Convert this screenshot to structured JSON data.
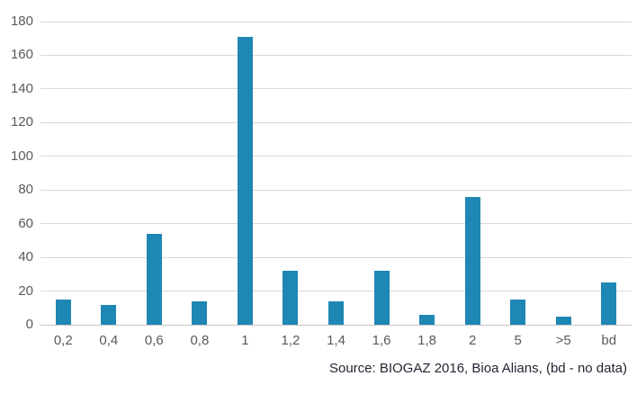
{
  "chart_data": {
    "type": "bar",
    "title": "",
    "xlabel": "",
    "ylabel": "",
    "categories": [
      "0,2",
      "0,4",
      "0,6",
      "0,8",
      "1",
      "1,2",
      "1,4",
      "1,6",
      "1,8",
      "2",
      "5",
      ">5",
      "bd"
    ],
    "values": [
      15,
      12,
      54,
      14,
      171,
      32,
      14,
      32,
      6,
      76,
      15,
      5,
      25
    ],
    "ylim": [
      0,
      180
    ],
    "yticks": [
      0,
      20,
      40,
      60,
      80,
      100,
      120,
      140,
      160,
      180
    ],
    "grid": true,
    "legend": false,
    "source": "Source: BIOGAZ 2016, Bioa Alians, (bd - no data)",
    "colors": {
      "bar": "#1f87b4",
      "gridline": "#d9d9d9",
      "axis_line": "#c6c6c6",
      "tick_label": "#595959",
      "source_text": "#1f2430",
      "background": "#ffffff"
    }
  }
}
